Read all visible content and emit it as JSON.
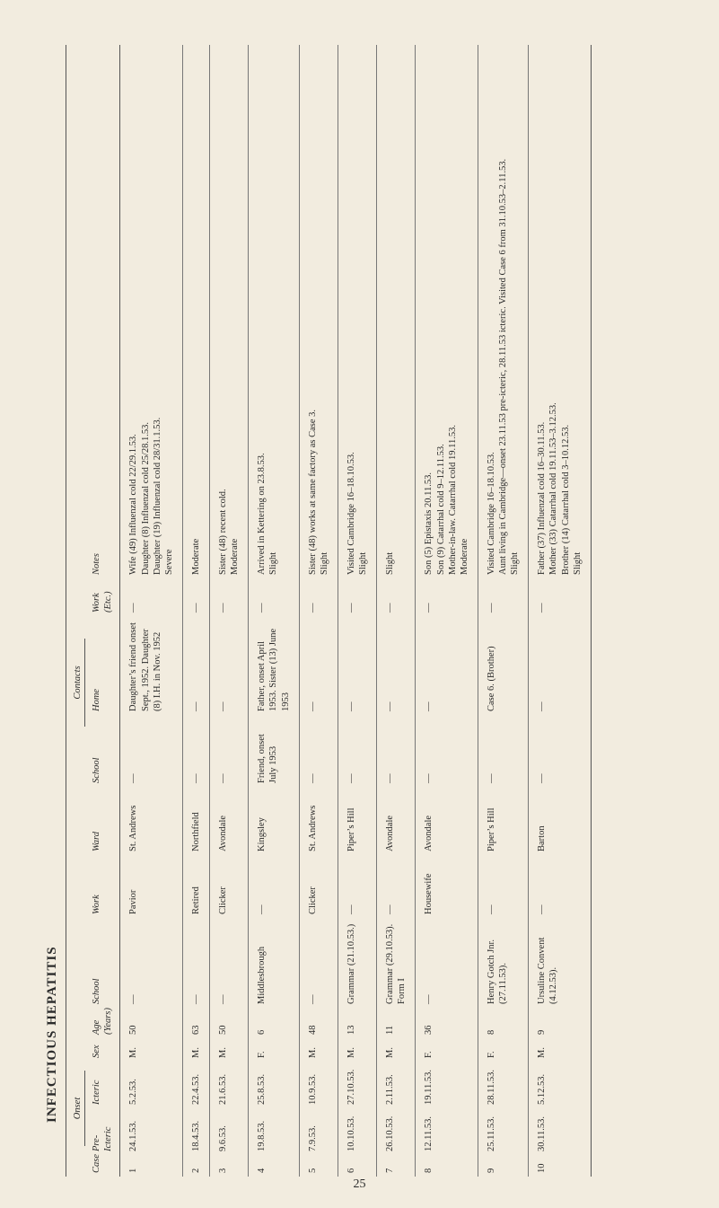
{
  "title": "INFECTIOUS HEPATITIS",
  "page_number": "25",
  "group_headers": {
    "onset": "Onset",
    "contacts": "Contacts"
  },
  "columns": {
    "case": "Case",
    "pre_icteric": "Pre-\nIcteric",
    "icteric": "Icteric",
    "sex": "Sex",
    "age": "Age\n(Years)",
    "school": "School",
    "work": "Work",
    "ward": "Ward",
    "c_school": "School",
    "home": "Home",
    "work_etc": "Work (Etc.)",
    "notes": "Notes"
  },
  "dash": "—",
  "rows": [
    {
      "case": "1",
      "pre": "24.1.53.",
      "ict": "5.2.53.",
      "sex": "M.",
      "age": "50",
      "school": "—",
      "work": "Pavior",
      "ward": "St. Andrews",
      "c_school": "—",
      "home": "Daughter’s friend onset Sept., 1952. Daughter (8) I.H. in Nov. 1952",
      "work_etc": "—",
      "notes": "Wife (49) Influenzal cold 22/29.1.53.\nDaughter (8) Influenzal cold 25/28.1.53.\nDaughter (19) Influenzal cold 28/31.1.53.\nSevere"
    },
    {
      "case": "2",
      "pre": "18.4.53.",
      "ict": "22.4.53.",
      "sex": "M.",
      "age": "63",
      "school": "—",
      "work": "Retired",
      "ward": "Northfield",
      "c_school": "—",
      "home": "—",
      "work_etc": "—",
      "notes": "Moderate"
    },
    {
      "case": "3",
      "pre": "9.6.53.",
      "ict": "21.6.53.",
      "sex": "M.",
      "age": "50",
      "school": "—",
      "work": "Clicker",
      "ward": "Avondale",
      "c_school": "—",
      "home": "—",
      "work_etc": "—",
      "notes": "Sister (48) recent cold.\nModerate"
    },
    {
      "case": "4",
      "pre": "19.8.53.",
      "ict": "25.8.53.",
      "sex": "F.",
      "age": "6",
      "school": "Middlesbrough",
      "work": "—",
      "ward": "Kingsley",
      "c_school": "Friend, onset July 1953",
      "home": "Father, onset April 1953. Sister (13) June 1953",
      "work_etc": "—",
      "notes": "Arrived in Kettering on 23.8.53.\nSlight"
    },
    {
      "case": "5",
      "pre": "7.9.53.",
      "ict": "10.9.53.",
      "sex": "M.",
      "age": "48",
      "school": "—",
      "work": "Clicker",
      "ward": "St. Andrews",
      "c_school": "—",
      "home": "—",
      "work_etc": "—",
      "notes": "Sister (48) works at same factory as Case 3.\nSlight"
    },
    {
      "case": "6",
      "pre": "10.10.53.",
      "ict": "27.10.53.",
      "sex": "M.",
      "age": "13",
      "school": "Grammar (21.10.53.)",
      "work": "—",
      "ward": "Piper’s Hill",
      "c_school": "—",
      "home": "—",
      "work_etc": "—",
      "notes": "Visited Cambridge 16–18.10.53.\nSlight"
    },
    {
      "case": "7",
      "pre": "26.10.53.",
      "ict": "2.11.53.",
      "sex": "M.",
      "age": "11",
      "school": "Grammar (29.10.53). Form I",
      "work": "—",
      "ward": "Avondale",
      "c_school": "—",
      "home": "—",
      "work_etc": "—",
      "notes": "Slight"
    },
    {
      "case": "8",
      "pre": "12.11.53.",
      "ict": "19.11.53.",
      "sex": "F.",
      "age": "36",
      "school": "—",
      "work": "Housewife",
      "ward": "Avondale",
      "c_school": "—",
      "home": "—",
      "work_etc": "—",
      "notes": "Son (5) Epistaxis 20.11.53.\nSon (9) Catarrhal cold 9–12.11.53.\nMother-in-law. Catarrhal cold 19.11.53.\nModerate"
    },
    {
      "case": "9",
      "pre": "25.11.53.",
      "ict": "28.11.53.",
      "sex": "F.",
      "age": "8",
      "school": "Henry Gotch Jnr. (27.11.53).",
      "work": "—",
      "ward": "Piper’s Hill",
      "c_school": "—",
      "home": "Case 6. (Brother)",
      "work_etc": "—",
      "notes": "Visited Cambridge 16–18.10.53.\nAunt living in Cambridge—onset 23.11.53 pre-icteric, 28.11.53 icteric. Visited Case 6 from 31.10.53–2.11.53.\nSlight"
    },
    {
      "case": "10",
      "pre": "30.11.53.",
      "ict": "5.12.53.",
      "sex": "M.",
      "age": "9",
      "school": "Ursuline Convent (4.12.53).",
      "work": "—",
      "ward": "Barton",
      "c_school": "—",
      "home": "—",
      "work_etc": "—",
      "notes": "Father (37) Influenzal cold 16–30.11.53.\nMother (33) Catarrhal cold 19.11.53–3.12.53.\nBrother (14) Catarrhal cold 3–10.12.53.\nSlight"
    }
  ]
}
